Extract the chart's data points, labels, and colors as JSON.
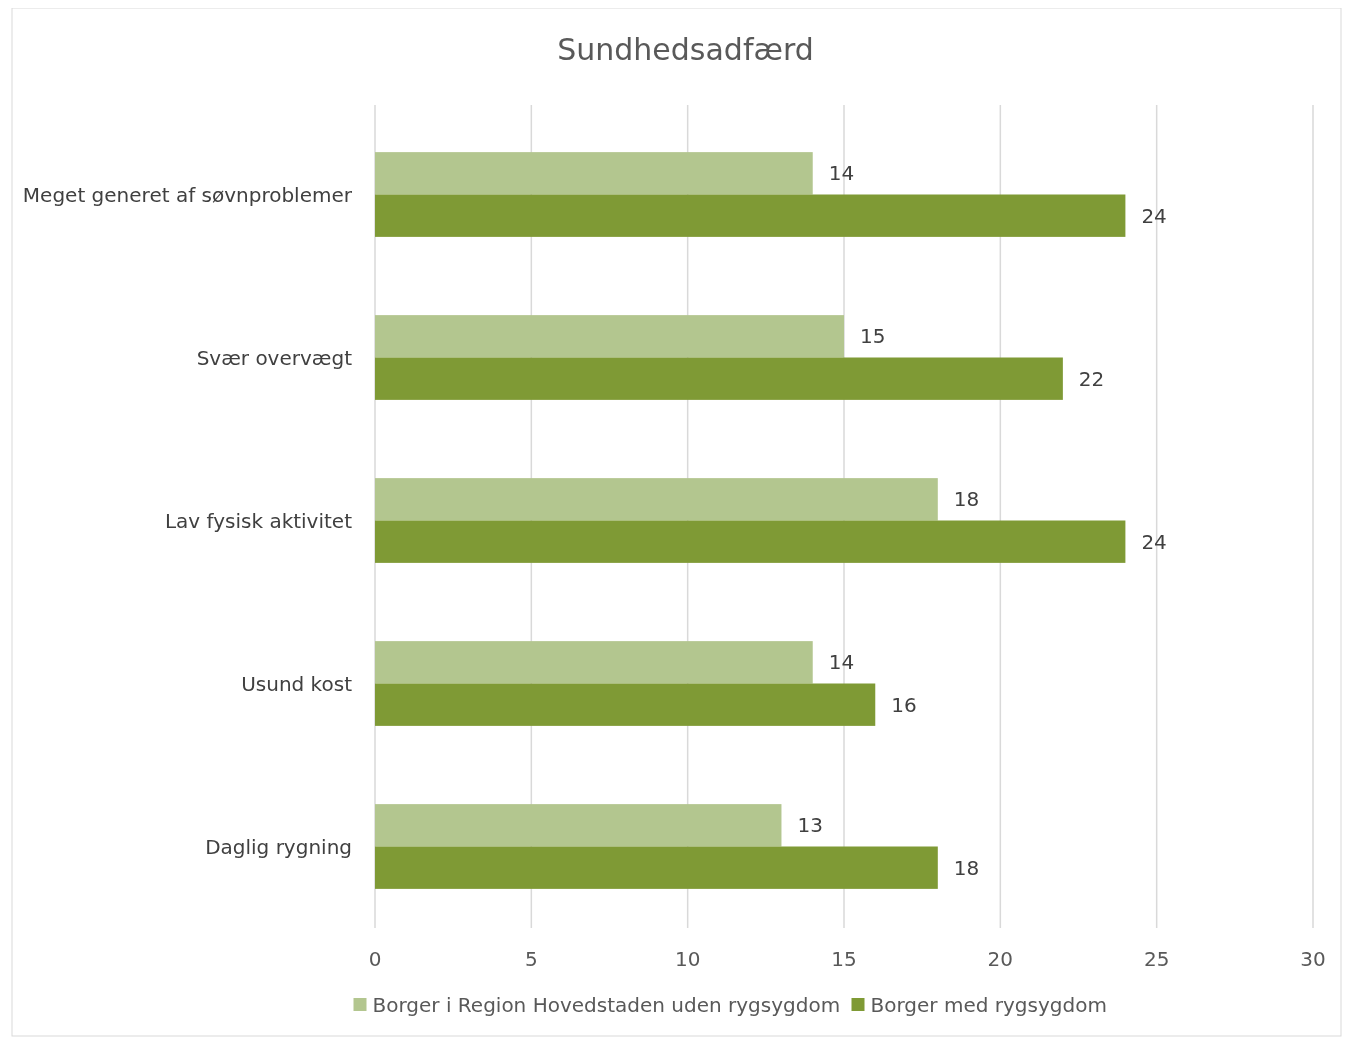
{
  "chart_data": {
    "type": "bar",
    "orientation": "horizontal",
    "title": "Sundhedsadfærd",
    "categories": [
      "Meget generet af søvnproblemer",
      "Svær overvægt",
      "Lav fysisk aktivitet",
      "Usund kost",
      "Daglig rygning"
    ],
    "series": [
      {
        "name": "Borger i Region Hovedstaden uden rygsygdom",
        "color": "#b3c68f",
        "values": [
          14,
          15,
          18,
          14,
          13
        ]
      },
      {
        "name": "Borger med rygsygdom",
        "color": "#7f9a35",
        "values": [
          24,
          22,
          24,
          16,
          18
        ]
      }
    ],
    "xlim": [
      0,
      30
    ],
    "xticks": [
      0,
      5,
      10,
      15,
      20,
      25,
      30
    ],
    "grid": "x",
    "legend": "bottom",
    "data_labels": true
  }
}
